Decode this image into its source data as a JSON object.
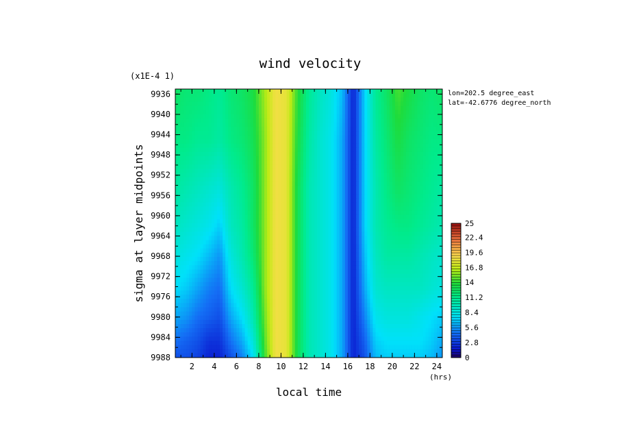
{
  "chart_data": {
    "type": "heatmap",
    "title": "wind velocity",
    "xlabel": "local time",
    "ylabel": "sigma at layer midpoints",
    "x_unit": "(hrs)",
    "y_multiplier": "(x1E-4 1)",
    "annotations": [
      "lon=202.5 degree_east",
      "lat=-42.6776 degree_north"
    ],
    "x_ticks": [
      "2",
      "4",
      "6",
      "8",
      "10",
      "12",
      "14",
      "16",
      "18",
      "20",
      "22",
      "24"
    ],
    "y_ticks": [
      "9936",
      "9940",
      "9944",
      "9948",
      "9952",
      "9956",
      "9960",
      "9964",
      "9968",
      "9972",
      "9976",
      "9980",
      "9984",
      "9988"
    ],
    "xlim": [
      0.5,
      24.5
    ],
    "ylim": [
      9988,
      9935
    ],
    "colorbar": {
      "min": 0,
      "max": 25,
      "labels": [
        "25",
        "22.4",
        "19.6",
        "16.8",
        "14",
        "11.2",
        "8.4",
        "5.6",
        "2.8",
        "0"
      ]
    },
    "x": [
      0.5,
      1.5,
      2.5,
      3.5,
      4.5,
      5.5,
      6.5,
      7.5,
      8.5,
      9.5,
      10.5,
      11.5,
      12.5,
      13.5,
      14.5,
      15.5,
      16.5,
      17.5,
      18.5,
      19.5,
      20.5,
      21.5,
      22.5,
      23.5,
      24.5
    ],
    "y": [
      9935,
      9945,
      9955,
      9962,
      9968,
      9974,
      9980,
      9985,
      9988
    ],
    "z": [
      [
        12.5,
        12.0,
        12.0,
        11.5,
        11.0,
        12.0,
        12.5,
        13.5,
        16.0,
        18.5,
        18.0,
        14.0,
        11.0,
        9.5,
        8.5,
        6.5,
        2.0,
        7.0,
        11.0,
        12.5,
        14.5,
        13.5,
        12.5,
        12.0,
        12.5
      ],
      [
        11.5,
        11.5,
        11.0,
        11.0,
        10.5,
        11.5,
        12.0,
        13.0,
        15.5,
        18.5,
        18.0,
        13.5,
        10.5,
        9.0,
        8.0,
        6.0,
        2.0,
        7.0,
        10.5,
        12.0,
        13.5,
        12.5,
        12.0,
        11.5,
        11.5
      ],
      [
        10.5,
        10.0,
        9.5,
        9.0,
        8.5,
        10.0,
        11.0,
        12.5,
        15.5,
        18.5,
        18.0,
        13.0,
        10.0,
        9.0,
        8.0,
        6.0,
        2.0,
        7.0,
        10.0,
        11.5,
        12.5,
        12.0,
        11.5,
        11.0,
        10.5
      ],
      [
        9.5,
        9.0,
        8.5,
        8.0,
        7.0,
        9.5,
        10.5,
        12.5,
        15.5,
        18.5,
        18.0,
        13.0,
        10.0,
        9.0,
        8.0,
        6.0,
        2.0,
        7.0,
        10.0,
        11.0,
        11.5,
        11.5,
        11.0,
        10.5,
        10.0
      ],
      [
        8.5,
        8.0,
        7.5,
        6.5,
        5.5,
        8.5,
        10.0,
        12.0,
        15.5,
        18.5,
        18.0,
        13.0,
        10.0,
        9.0,
        8.0,
        6.0,
        2.0,
        6.5,
        9.5,
        10.5,
        10.5,
        10.5,
        10.0,
        9.5,
        9.0
      ],
      [
        7.5,
        7.0,
        6.0,
        5.0,
        4.5,
        7.5,
        9.0,
        11.0,
        15.5,
        18.5,
        18.0,
        13.0,
        10.0,
        9.0,
        8.0,
        6.0,
        2.0,
        6.0,
        9.0,
        9.5,
        9.5,
        9.5,
        9.5,
        9.0,
        8.5
      ],
      [
        6.0,
        5.5,
        4.5,
        4.0,
        3.5,
        6.0,
        7.5,
        10.0,
        15.0,
        18.5,
        18.0,
        13.0,
        10.0,
        9.0,
        8.0,
        6.0,
        2.0,
        5.0,
        8.0,
        8.5,
        8.5,
        8.5,
        8.0,
        7.5,
        7.0
      ],
      [
        4.5,
        4.0,
        3.5,
        2.5,
        2.5,
        4.5,
        6.0,
        8.5,
        14.5,
        18.5,
        18.0,
        13.0,
        10.0,
        9.0,
        8.0,
        6.0,
        2.0,
        4.0,
        7.0,
        7.5,
        7.5,
        7.5,
        7.5,
        7.0,
        6.0
      ],
      [
        3.5,
        3.5,
        3.0,
        2.0,
        2.0,
        3.5,
        5.0,
        7.5,
        14.0,
        18.5,
        18.0,
        13.0,
        10.0,
        9.0,
        8.0,
        6.0,
        2.0,
        3.5,
        6.5,
        7.0,
        7.0,
        7.0,
        7.0,
        6.5,
        5.5
      ]
    ]
  }
}
